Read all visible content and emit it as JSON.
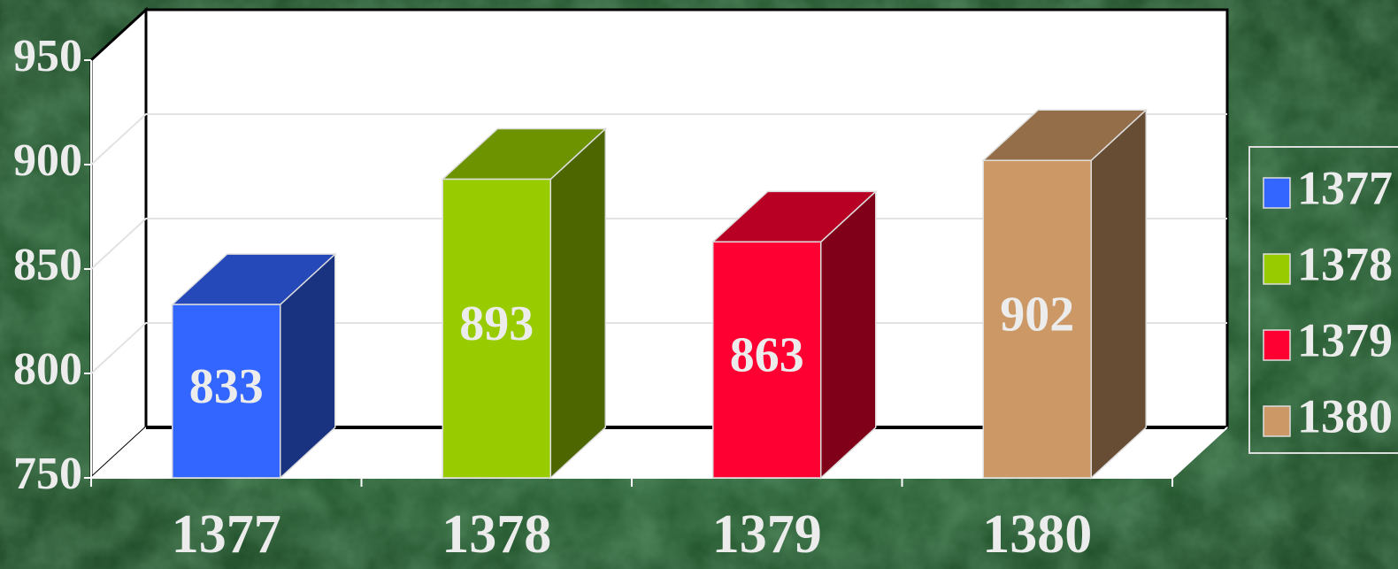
{
  "chart_data": {
    "type": "bar3d",
    "categories": [
      "1377",
      "1378",
      "1379",
      "1380"
    ],
    "values": [
      833,
      893,
      863,
      902
    ],
    "colors": [
      "#3366ff",
      "#99cc00",
      "#ff0033",
      "#cc9966"
    ],
    "ylim": [
      750,
      950
    ],
    "yticks": [
      750,
      800,
      850,
      900,
      950
    ],
    "grid": true,
    "legend": "right"
  }
}
